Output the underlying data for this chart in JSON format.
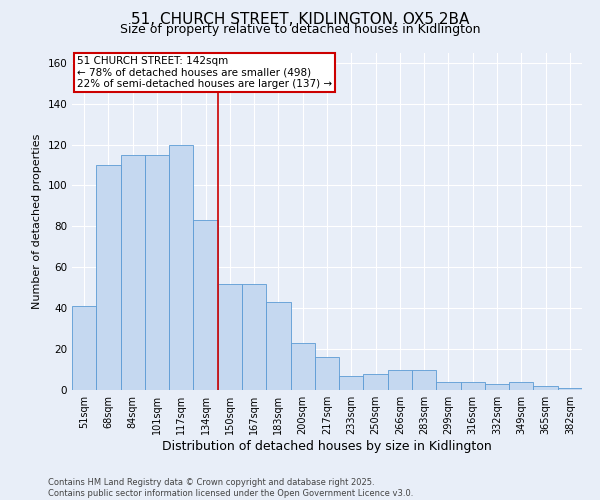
{
  "title": "51, CHURCH STREET, KIDLINGTON, OX5 2BA",
  "subtitle": "Size of property relative to detached houses in Kidlington",
  "xlabel": "Distribution of detached houses by size in Kidlington",
  "ylabel": "Number of detached properties",
  "categories": [
    "51sqm",
    "68sqm",
    "84sqm",
    "101sqm",
    "117sqm",
    "134sqm",
    "150sqm",
    "167sqm",
    "183sqm",
    "200sqm",
    "217sqm",
    "233sqm",
    "250sqm",
    "266sqm",
    "283sqm",
    "299sqm",
    "316sqm",
    "332sqm",
    "349sqm",
    "365sqm",
    "382sqm"
  ],
  "values": [
    41,
    110,
    115,
    115,
    120,
    83,
    52,
    52,
    43,
    23,
    16,
    7,
    8,
    10,
    10,
    4,
    4,
    3,
    4,
    2,
    1
  ],
  "bar_color": "#c5d8f0",
  "bar_edge_color": "#5b9bd5",
  "annotation_text_line1": "51 CHURCH STREET: 142sqm",
  "annotation_text_line2": "← 78% of detached houses are smaller (498)",
  "annotation_text_line3": "22% of semi-detached houses are larger (137) →",
  "annotation_box_color": "#ffffff",
  "annotation_box_edge_color": "#cc0000",
  "vline_color": "#cc0000",
  "vline_x": 5.5,
  "ylim": [
    0,
    165
  ],
  "yticks": [
    0,
    20,
    40,
    60,
    80,
    100,
    120,
    140,
    160
  ],
  "bg_color": "#e8eef8",
  "plot_bg_color": "#e8eef8",
  "footer_line1": "Contains HM Land Registry data © Crown copyright and database right 2025.",
  "footer_line2": "Contains public sector information licensed under the Open Government Licence v3.0.",
  "title_fontsize": 11,
  "subtitle_fontsize": 9,
  "xlabel_fontsize": 9,
  "ylabel_fontsize": 8,
  "tick_fontsize": 7,
  "footer_fontsize": 6,
  "ann_fontsize": 7.5
}
